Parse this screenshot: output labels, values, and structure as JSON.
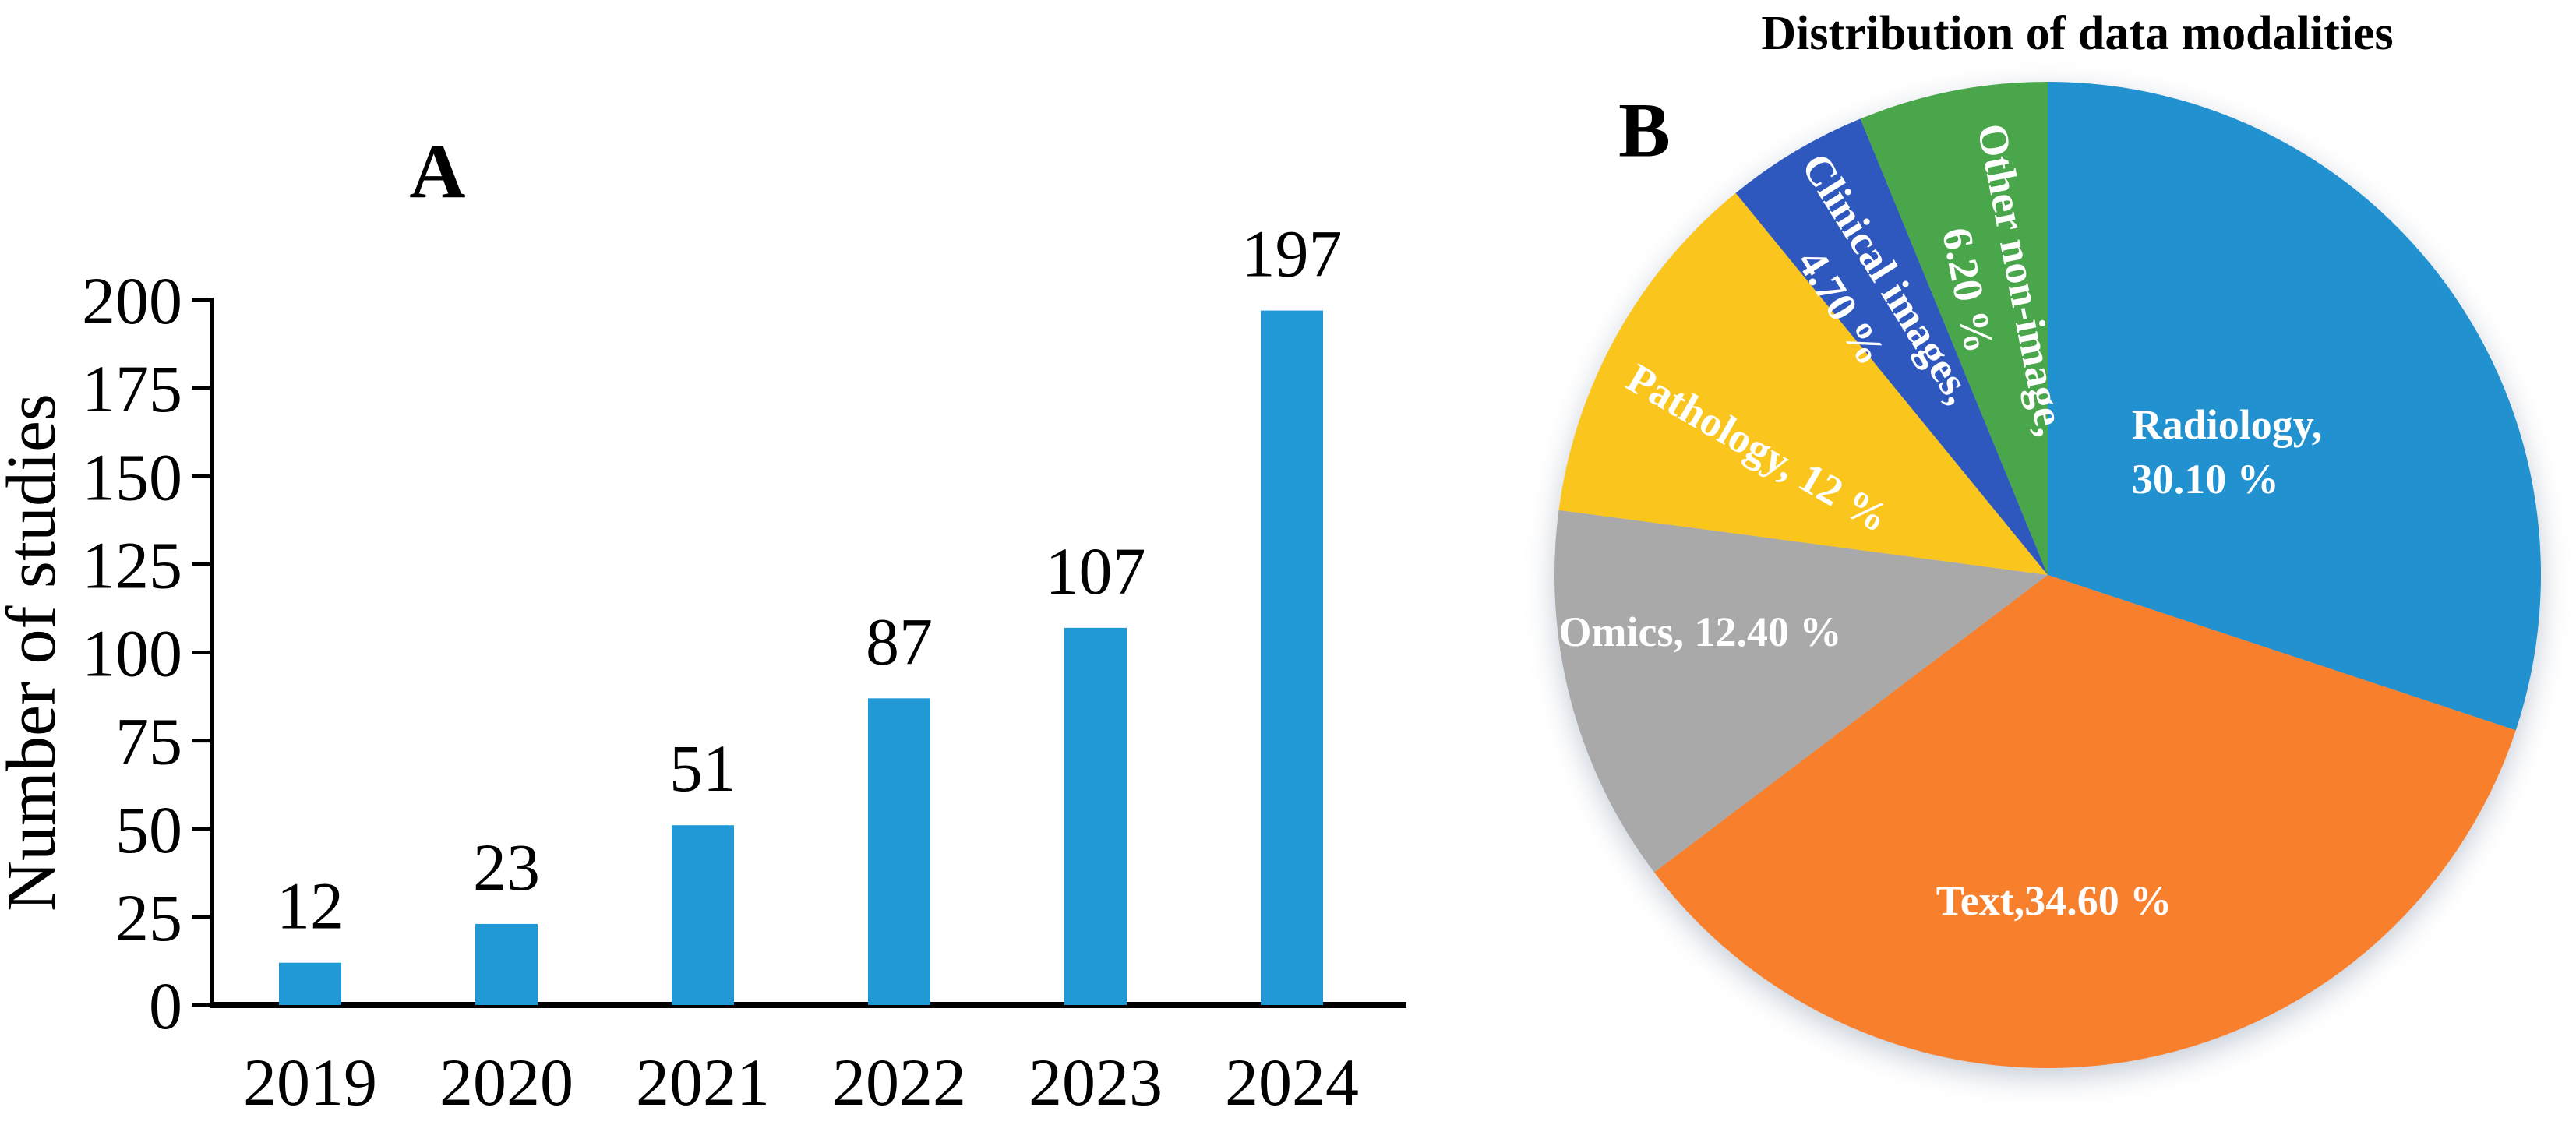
{
  "panels": {
    "a": {
      "label": "A"
    },
    "b": {
      "label": "B",
      "title": "Distribution of data modalities"
    }
  },
  "chart_data": [
    {
      "type": "bar",
      "panel": "A",
      "title": "",
      "categories": [
        "2019",
        "2020",
        "2021",
        "2022",
        "2023",
        "2024"
      ],
      "values": [
        12,
        23,
        51,
        87,
        107,
        197
      ],
      "value_labels": [
        "12",
        "23",
        "51",
        "87",
        "107",
        "197"
      ],
      "xlabel": "",
      "ylabel": "Number of studies",
      "ylim": [
        0,
        200
      ],
      "ytick_step": 25,
      "ytick_labels": [
        "0",
        "25",
        "50",
        "75",
        "100",
        "125",
        "150",
        "175",
        "200"
      ],
      "grid": false,
      "bar_color": "#2199D6",
      "axis_color": "#000000"
    },
    {
      "type": "pie",
      "panel": "B",
      "title": "Distribution of data modalities",
      "start_angle_deg": 0,
      "direction": "clockwise",
      "label_color": "#ffffff",
      "slices": [
        {
          "label": "Radiology",
          "value": 30.1,
          "display_lines": [
            "Radiology,",
            "30.10 %"
          ],
          "color": "#2191D0"
        },
        {
          "label": "Text",
          "value": 34.6,
          "display_lines": [
            "Text,34.60 %"
          ],
          "color": "#F87F2C"
        },
        {
          "label": "Omics",
          "value": 12.4,
          "display_lines": [
            "Omics, 12.40 %"
          ],
          "color": "#A9A9A9"
        },
        {
          "label": "Pathology",
          "value": 12.0,
          "display_lines": [
            "Pathology, 12 %"
          ],
          "color": "#FAC51C"
        },
        {
          "label": "Clinical images",
          "value": 4.7,
          "display_lines": [
            "Clinical images,",
            "4.70 %"
          ],
          "color": "#2F58BE"
        },
        {
          "label": "Other non-image",
          "value": 6.2,
          "display_lines": [
            "Other non-image,",
            "6.20 %"
          ],
          "color": "#4AA64A"
        }
      ]
    }
  ]
}
